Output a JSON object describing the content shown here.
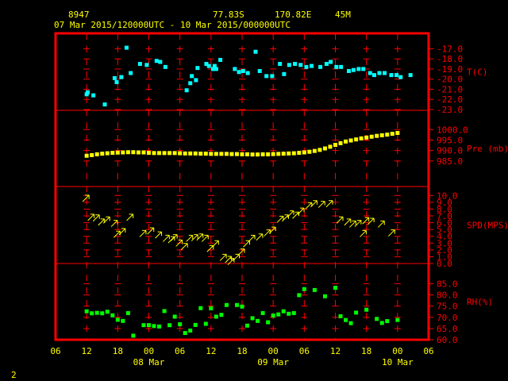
{
  "header": {
    "station_id": "8947",
    "lat": "77.83S",
    "lon": "170.82E",
    "elev": "45M",
    "period": "07 Mar 2015/120000UTC - 10 Mar 2015/000000UTC"
  },
  "footer": {
    "page_number": "2"
  },
  "colors": {
    "frame": "#ff0000",
    "grid": "#ff0000",
    "text_header": "#ffff00",
    "temp": "#00ffff",
    "pressure": "#ffff00",
    "wind": "#ffff00",
    "rh": "#00ff00"
  },
  "chart_data": {
    "type": "scatter",
    "x_axis": {
      "unit": "hours since 07 Mar 2015 06UTC",
      "range": [
        0,
        72
      ],
      "tick_labels": [
        "06",
        "12",
        "18",
        "00",
        "06",
        "12",
        "18",
        "00",
        "06",
        "12",
        "18",
        "00",
        "06"
      ],
      "tick_hours": [
        0,
        6,
        12,
        18,
        24,
        30,
        36,
        42,
        48,
        54,
        60,
        66,
        72
      ],
      "date_labels": [
        {
          "text": "08 Mar",
          "hour": 18
        },
        {
          "text": "09 Mar",
          "hour": 42
        },
        {
          "text": "10 Mar",
          "hour": 66
        }
      ]
    },
    "panels": [
      {
        "name": "temperature",
        "label": "T(C)",
        "ylim": [
          -23,
          -16.5
        ],
        "tick_values": [
          -17,
          -18,
          -19,
          -20,
          -21,
          -22,
          -23
        ],
        "tick_labels": [
          "-17.0",
          "-18.0",
          "-19.0",
          "-20.0",
          "-21.0",
          "-22.0",
          "-23.0"
        ],
        "x": [
          6,
          6.2,
          7.3,
          9.5,
          11.4,
          11.8,
          12.7,
          13.7,
          14.5,
          16.3,
          17.6,
          19.5,
          20.2,
          21.2,
          25.3,
          26,
          26.3,
          27.1,
          27.4,
          29.1,
          29.6,
          30.4,
          30.7,
          31,
          31.8,
          34.6,
          35.4,
          36.2,
          37.1,
          38.6,
          39.4,
          40.7,
          41.8,
          43.3,
          44.1,
          45.1,
          46.2,
          47.3,
          48.4,
          49.4,
          51.1,
          52.3,
          53.1,
          54.2,
          55.1,
          56.6,
          57.5,
          58.5,
          59.4,
          60.7,
          61.5,
          62.5,
          63.5,
          64.8,
          65.8,
          66.6,
          68.5
        ],
        "y": [
          -21.5,
          -21.3,
          -21.6,
          -22.5,
          -19.9,
          -20.3,
          -19.8,
          -16.9,
          -19.4,
          -18.5,
          -18.6,
          -18.2,
          -18.3,
          -18.8,
          -21.1,
          -20.4,
          -19.7,
          -20.1,
          -18.9,
          -18.5,
          -18.7,
          -19.0,
          -18.7,
          -19.0,
          -18.1,
          -19.0,
          -19.3,
          -19.2,
          -19.4,
          -17.3,
          -19.2,
          -19.7,
          -19.7,
          -18.5,
          -19.5,
          -18.6,
          -18.5,
          -18.6,
          -18.8,
          -18.7,
          -18.8,
          -18.5,
          -18.3,
          -18.8,
          -18.8,
          -19.2,
          -19.1,
          -19.0,
          -19.0,
          -19.4,
          -19.6,
          -19.4,
          -19.4,
          -19.6,
          -19.6,
          -19.8,
          -19.6
        ]
      },
      {
        "name": "pressure",
        "label": "Pre (mb)",
        "ylim": [
          980,
          1002
        ],
        "tick_values": [
          1000,
          995,
          990,
          985
        ],
        "tick_labels": [
          "1000.0",
          "995.0",
          "990.0",
          "985.0"
        ],
        "x": [
          6,
          7,
          8,
          9,
          10,
          11,
          12,
          13,
          14,
          15,
          16,
          17,
          18,
          19,
          20,
          21,
          22,
          23,
          24,
          25,
          26,
          27,
          28,
          29,
          30,
          31,
          32,
          33,
          34,
          35,
          36,
          37,
          38,
          39,
          40,
          41,
          42,
          43,
          44,
          45,
          46,
          47,
          48,
          49,
          50,
          51,
          52,
          53,
          54,
          55,
          56,
          57,
          58,
          59,
          60,
          61,
          62,
          63,
          64,
          65,
          66
        ],
        "y": [
          987.5,
          987.8,
          988.2,
          988.5,
          988.7,
          988.9,
          989,
          989.1,
          989.2,
          989.2,
          989.1,
          989.1,
          988.9,
          988.8,
          988.8,
          988.8,
          988.8,
          988.8,
          988.7,
          988.6,
          988.6,
          988.6,
          988.5,
          988.5,
          988.4,
          988.4,
          988.4,
          988.4,
          988.3,
          988.3,
          988.2,
          988.2,
          988.1,
          988.1,
          988.2,
          988.2,
          988.3,
          988.4,
          988.5,
          988.6,
          988.7,
          988.9,
          989.1,
          989.4,
          989.8,
          990.3,
          991,
          991.8,
          992.7,
          993.5,
          994.3,
          994.8,
          995.3,
          995.8,
          996.2,
          996.6,
          997.0,
          997.3,
          997.6,
          998.0,
          998.4
        ]
      },
      {
        "name": "wind",
        "label": "SPD(MPS)",
        "ylim": [
          0,
          10.5
        ],
        "tick_values": [
          10,
          9,
          8,
          7,
          6,
          5,
          4,
          3,
          2,
          1,
          0
        ],
        "tick_labels": [
          "10.0",
          "9.0",
          "8.0",
          "7.0",
          "6.0",
          "5.0",
          "4.0",
          "3.0",
          "2.0",
          "1.0",
          "0.0"
        ],
        "x": [
          6,
          7,
          8,
          9,
          10,
          11.5,
          12,
          13,
          14.5,
          17,
          18.5,
          20,
          21.5,
          22.5,
          23,
          24,
          25,
          26,
          27,
          28,
          29,
          30,
          31,
          32.5,
          33.5,
          34,
          35,
          36,
          37,
          38,
          39.5,
          41,
          42,
          43.5,
          44.5,
          45.5,
          46.5,
          47.5,
          49,
          50,
          51.5,
          53,
          55,
          56.5,
          57.5,
          58.5,
          59.5,
          60,
          61,
          63,
          65
        ],
        "y": [
          9.7,
          6.9,
          6.8,
          6.2,
          6.5,
          6.0,
          4.4,
          4.8,
          6.9,
          4.5,
          4.9,
          4.3,
          3.8,
          3.6,
          3.9,
          3.1,
          2.6,
          3.8,
          3.9,
          4.0,
          3.8,
          2.3,
          3.0,
          1.0,
          0.7,
          0.4,
          1.0,
          1.8,
          3.0,
          3.8,
          4.0,
          4.6,
          5.0,
          6.6,
          6.8,
          7.4,
          7.2,
          7.8,
          8.6,
          8.9,
          8.8,
          8.9,
          6.5,
          6.2,
          5.9,
          6.0,
          4.5,
          6.4,
          6.3,
          5.9,
          4.6
        ]
      },
      {
        "name": "rh",
        "label": "RH(%)",
        "ylim": [
          60,
          88
        ],
        "tick_values": [
          85,
          80,
          75,
          70,
          65,
          60
        ],
        "tick_labels": [
          "85.0",
          "80.0",
          "75.0",
          "70.0",
          "65.0",
          "60.0"
        ],
        "x": [
          6,
          7,
          8,
          9,
          10,
          11,
          12,
          13,
          14,
          15,
          17,
          18,
          19,
          20,
          21,
          22,
          23,
          24,
          25,
          26,
          27,
          28,
          29,
          30,
          31,
          32,
          33,
          35,
          36,
          37,
          38,
          39,
          40,
          41,
          42,
          43,
          44,
          45,
          46,
          47,
          48,
          50,
          52,
          54,
          55,
          56,
          57,
          58,
          60,
          62,
          63,
          64,
          66
        ],
        "y": [
          72.7,
          71.8,
          72.0,
          71.8,
          72.5,
          70.9,
          68.9,
          68.4,
          71.9,
          61.8,
          66.5,
          66.5,
          66.1,
          65.9,
          72.8,
          66.5,
          70.3,
          66.9,
          63.0,
          64.1,
          66.6,
          74.1,
          67.1,
          74.0,
          70.3,
          71.1,
          75.5,
          75.5,
          74.8,
          66.3,
          69.6,
          68.4,
          71.9,
          67.8,
          70.8,
          71.3,
          72.7,
          71.6,
          71.9,
          79.9,
          82.6,
          82.2,
          79.4,
          83.2,
          70.5,
          68.8,
          67.4,
          72.1,
          73.4,
          69.3,
          67.5,
          68.3,
          68.8
        ]
      }
    ]
  }
}
